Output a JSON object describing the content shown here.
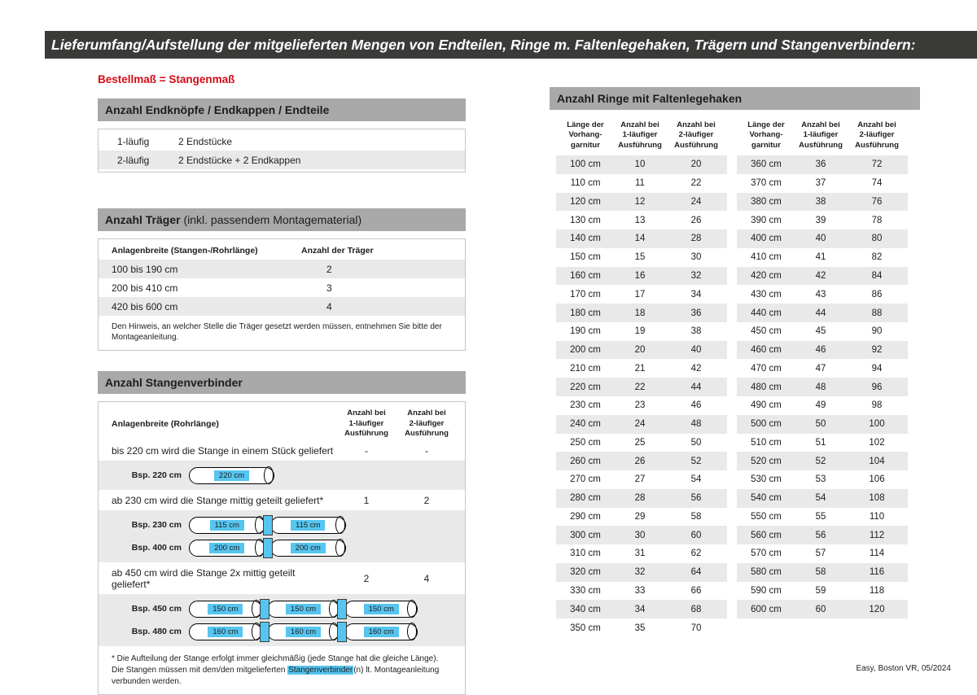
{
  "page": {
    "title": "Lieferumfang/Aufstellung der mitgelieferten Mengen von Endteilen, Ringe m. Faltenlegehaken, Trägern und Stangenverbindern:",
    "footer": "Easy, Boston VR, 05/2024"
  },
  "colors": {
    "titlebar_dark": "#3a3a39",
    "section_header_gray": "#a9a9a9",
    "row_shade": "#e9e9e9",
    "accent_red": "#d30b17",
    "highlight_cyan": "#56c5f0"
  },
  "left": {
    "order_note": "Bestellmaß = Stangenmaß",
    "endteile": {
      "header": "Anzahl Endknöpfe / Endkappen / Endteile",
      "rows": [
        {
          "label": "1-läufig",
          "value": "2 Endstücke"
        },
        {
          "label": "2-läufig",
          "value": "2 Endstücke + 2 Endkappen"
        }
      ]
    },
    "traeger": {
      "header_bold": "Anzahl Träger",
      "header_normal": " (inkl. passendem Montagematerial)",
      "col1": "Anlagenbreite (Stangen-/Rohrlänge)",
      "col2": "Anzahl der Träger",
      "rows": [
        {
          "range": "100 bis 190 cm",
          "count": "2"
        },
        {
          "range": "200 bis 410 cm",
          "count": "3"
        },
        {
          "range": "420 bis 600 cm",
          "count": "4"
        }
      ],
      "note": "Den Hinweis, an welcher Stelle die Träger gesetzt werden müssen, entnehmen Sie bitte der Montageanleitung."
    },
    "verbinder": {
      "header": "Anzahl Stangenverbinder",
      "col1": "Anlagenbreite (Rohrlänge)",
      "col2": "Anzahl bei\n1-läufiger\nAusführung",
      "col3": "Anzahl bei\n2-läufiger\nAusführung",
      "sections": [
        {
          "text": "bis 220 cm wird die Stange in einem Stück geliefert",
          "count_1laeufig": "-",
          "count_2laeufig": "-",
          "examples": [
            {
              "label": "Bsp. 220 cm",
              "segments": [
                "220 cm"
              ]
            }
          ]
        },
        {
          "text": "ab 230 cm wird die Stange mittig geteilt geliefert*",
          "count_1laeufig": "1",
          "count_2laeufig": "2",
          "examples": [
            {
              "label": "Bsp. 230 cm",
              "segments": [
                "115 cm",
                "115 cm"
              ]
            },
            {
              "label": "Bsp. 400 cm",
              "segments": [
                "200 cm",
                "200 cm"
              ]
            }
          ]
        },
        {
          "text": "ab 450 cm wird die Stange 2x mittig geteilt geliefert*",
          "count_1laeufig": "2",
          "count_2laeufig": "4",
          "examples": [
            {
              "label": "Bsp. 450 cm",
              "segments": [
                "150 cm",
                "150 cm",
                "150 cm"
              ]
            },
            {
              "label": "Bsp. 480 cm",
              "segments": [
                "160 cm",
                "160 cm",
                "160 cm"
              ]
            }
          ]
        }
      ],
      "footnote_pre": "* Die Aufteilung der Stange erfolgt immer gleichmäßig (jede Stange hat die gleiche Länge). Die Stangen müssen mit dem/den mitgelieferten ",
      "footnote_highlight": "Stangenverbinder",
      "footnote_post": "(n) lt. Montageanleitung verbunden werden."
    }
  },
  "rings": {
    "header": "Anzahl Ringe mit Faltenlegehaken",
    "col_headers": [
      "Länge der\nVorhang-\ngarnitur",
      "Anzahl bei\n1-läufiger\nAusführung",
      "Anzahl bei\n2-läufiger\nAusführung"
    ],
    "table1": [
      [
        "100 cm",
        "10",
        "20"
      ],
      [
        "110 cm",
        "11",
        "22"
      ],
      [
        "120 cm",
        "12",
        "24"
      ],
      [
        "130 cm",
        "13",
        "26"
      ],
      [
        "140 cm",
        "14",
        "28"
      ],
      [
        "150 cm",
        "15",
        "30"
      ],
      [
        "160 cm",
        "16",
        "32"
      ],
      [
        "170 cm",
        "17",
        "34"
      ],
      [
        "180 cm",
        "18",
        "36"
      ],
      [
        "190 cm",
        "19",
        "38"
      ],
      [
        "200 cm",
        "20",
        "40"
      ],
      [
        "210 cm",
        "21",
        "42"
      ],
      [
        "220 cm",
        "22",
        "44"
      ],
      [
        "230 cm",
        "23",
        "46"
      ],
      [
        "240 cm",
        "24",
        "48"
      ],
      [
        "250 cm",
        "25",
        "50"
      ],
      [
        "260 cm",
        "26",
        "52"
      ],
      [
        "270 cm",
        "27",
        "54"
      ],
      [
        "280 cm",
        "28",
        "56"
      ],
      [
        "290 cm",
        "29",
        "58"
      ],
      [
        "300 cm",
        "30",
        "60"
      ],
      [
        "310 cm",
        "31",
        "62"
      ],
      [
        "320 cm",
        "32",
        "64"
      ],
      [
        "330 cm",
        "33",
        "66"
      ],
      [
        "340 cm",
        "34",
        "68"
      ],
      [
        "350 cm",
        "35",
        "70"
      ]
    ],
    "table2": [
      [
        "360 cm",
        "36",
        "72"
      ],
      [
        "370 cm",
        "37",
        "74"
      ],
      [
        "380 cm",
        "38",
        "76"
      ],
      [
        "390 cm",
        "39",
        "78"
      ],
      [
        "400 cm",
        "40",
        "80"
      ],
      [
        "410 cm",
        "41",
        "82"
      ],
      [
        "420 cm",
        "42",
        "84"
      ],
      [
        "430 cm",
        "43",
        "86"
      ],
      [
        "440 cm",
        "44",
        "88"
      ],
      [
        "450 cm",
        "45",
        "90"
      ],
      [
        "460 cm",
        "46",
        "92"
      ],
      [
        "470 cm",
        "47",
        "94"
      ],
      [
        "480 cm",
        "48",
        "96"
      ],
      [
        "490 cm",
        "49",
        "98"
      ],
      [
        "500 cm",
        "50",
        "100"
      ],
      [
        "510 cm",
        "51",
        "102"
      ],
      [
        "520 cm",
        "52",
        "104"
      ],
      [
        "530 cm",
        "53",
        "106"
      ],
      [
        "540 cm",
        "54",
        "108"
      ],
      [
        "550 cm",
        "55",
        "110"
      ],
      [
        "560 cm",
        "56",
        "112"
      ],
      [
        "570 cm",
        "57",
        "114"
      ],
      [
        "580 cm",
        "58",
        "116"
      ],
      [
        "590 cm",
        "59",
        "118"
      ],
      [
        "600 cm",
        "60",
        "120"
      ]
    ]
  }
}
